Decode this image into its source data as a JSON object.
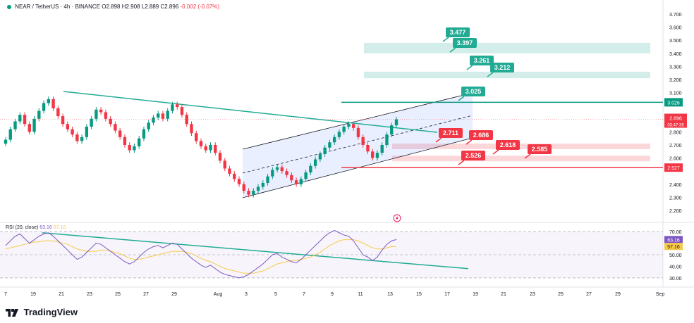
{
  "header": {
    "symbol": "NEAR / TetherUS · 4h · BINANCE",
    "open": "O2.898",
    "high": "H2.908",
    "low": "L2.889",
    "close": "C2.896",
    "change": "-0.002 (-0.07%)"
  },
  "rsi_header": {
    "label": "RSI (20, close)",
    "rsi": "63.16",
    "ma": "57.16"
  },
  "logo": {
    "text": "TradingView"
  },
  "colors": {
    "up": "#089981",
    "down": "#f23645",
    "rsi": "#7e57c2",
    "rsi_ma": "#f7c948",
    "channel": "#2962ff",
    "teal": "#22ab94"
  },
  "chart_data": [
    {
      "type": "candlestick",
      "title": "NEAR / TetherUS · 4h · BINANCE",
      "y_ticks": [
        "3.700",
        "3.600",
        "3.500",
        "3.400",
        "3.300",
        "3.200",
        "3.100",
        "3.026",
        "2.896",
        "2.800",
        "2.700",
        "2.600",
        "2.527",
        "2.400",
        "2.300",
        "2.200"
      ],
      "ylim": [
        2.2,
        3.7
      ],
      "x_ticks": [
        "7",
        "19",
        "21",
        "23",
        "25",
        "27",
        "29",
        "Aug",
        "3",
        "5",
        "7",
        "9",
        "11",
        "13",
        "15",
        "17",
        "19",
        "21",
        "23",
        "25",
        "27",
        "29",
        "Sep"
      ],
      "price_labels": {
        "last": "2.896",
        "countdown": "03:47:36",
        "resistance": "3.026",
        "support": "2.527"
      },
      "annotations": [
        "3.477",
        "3.397",
        "3.261",
        "3.212",
        "3.025",
        "2.711",
        "2.686",
        "2.618",
        "2.585",
        "2.526"
      ],
      "zones": [
        {
          "type": "target",
          "from": 3.4,
          "to": 3.48,
          "color": "#22ab94"
        },
        {
          "type": "target",
          "from": 3.21,
          "to": 3.26,
          "color": "#22ab94"
        },
        {
          "type": "stop",
          "from": 2.687,
          "to": 2.711,
          "color": "#f23645"
        },
        {
          "type": "stop",
          "from": 2.585,
          "to": 2.618,
          "color": "#f23645"
        }
      ],
      "lines": [
        {
          "name": "resistance",
          "price": 3.026,
          "color": "#089981"
        },
        {
          "name": "support",
          "price": 2.527,
          "color": "#f23645"
        }
      ],
      "series": [
        {
          "name": "close",
          "values": [
            2.74,
            2.82,
            2.88,
            2.93,
            2.86,
            2.8,
            2.9,
            2.96,
            3.02,
            3.05,
            2.98,
            2.92,
            2.86,
            2.82,
            2.78,
            2.73,
            2.76,
            2.84,
            2.9,
            2.97,
            2.95,
            2.9,
            2.86,
            2.81,
            2.76,
            2.7,
            2.66,
            2.69,
            2.75,
            2.82,
            2.87,
            2.91,
            2.94,
            2.9,
            2.96,
            3.01,
            2.99,
            2.93,
            2.86,
            2.79,
            2.73,
            2.69,
            2.66,
            2.7,
            2.64,
            2.58,
            2.52,
            2.48,
            2.44,
            2.4,
            2.35,
            2.32,
            2.35,
            2.38,
            2.41,
            2.46,
            2.51,
            2.53,
            2.5,
            2.47,
            2.43,
            2.4,
            2.44,
            2.49,
            2.54,
            2.59,
            2.63,
            2.68,
            2.72,
            2.76,
            2.8,
            2.84,
            2.86,
            2.83,
            2.76,
            2.7,
            2.65,
            2.6,
            2.64,
            2.7,
            2.78,
            2.85,
            2.896
          ]
        }
      ]
    },
    {
      "type": "line",
      "title": "RSI (20, close)",
      "y_ticks": [
        "70.00",
        "63.16",
        "57.16",
        "50.00",
        "40.00",
        "30.00"
      ],
      "ylim": [
        27,
        73
      ],
      "series": [
        {
          "name": "RSI",
          "values": [
            58,
            62,
            66,
            68,
            64,
            60,
            63,
            66,
            68,
            69,
            66,
            62,
            58,
            54,
            50,
            46,
            48,
            52,
            56,
            60,
            59,
            56,
            53,
            50,
            47,
            44,
            42,
            44,
            48,
            52,
            55,
            57,
            58,
            56,
            58,
            60,
            59,
            55,
            51,
            47,
            44,
            41,
            39,
            41,
            38,
            35,
            33,
            32,
            31,
            30,
            31,
            33,
            36,
            39,
            42,
            46,
            50,
            51,
            48,
            46,
            44,
            43,
            46,
            50,
            54,
            58,
            62,
            66,
            69,
            71,
            69,
            67,
            66,
            62,
            56,
            50,
            48,
            45,
            48,
            54,
            59,
            62,
            63.16
          ]
        },
        {
          "name": "RSI-based MA",
          "values": [
            55,
            56,
            57,
            58,
            59,
            60,
            61,
            61,
            62,
            62,
            62,
            61,
            60,
            59,
            57,
            55,
            54,
            53,
            53,
            53,
            54,
            54,
            53,
            52,
            51,
            49,
            47,
            46,
            46,
            47,
            48,
            49,
            50,
            51,
            52,
            53,
            53,
            53,
            52,
            51,
            49,
            47,
            45,
            44,
            42,
            40,
            38,
            37,
            36,
            35,
            34,
            34,
            34,
            35,
            36,
            38,
            40,
            42,
            43,
            44,
            45,
            45,
            46,
            47,
            48,
            50,
            52,
            55,
            58,
            60,
            62,
            63,
            63,
            63,
            62,
            60,
            58,
            56,
            55,
            55,
            56,
            57,
            57.16
          ]
        }
      ]
    }
  ]
}
